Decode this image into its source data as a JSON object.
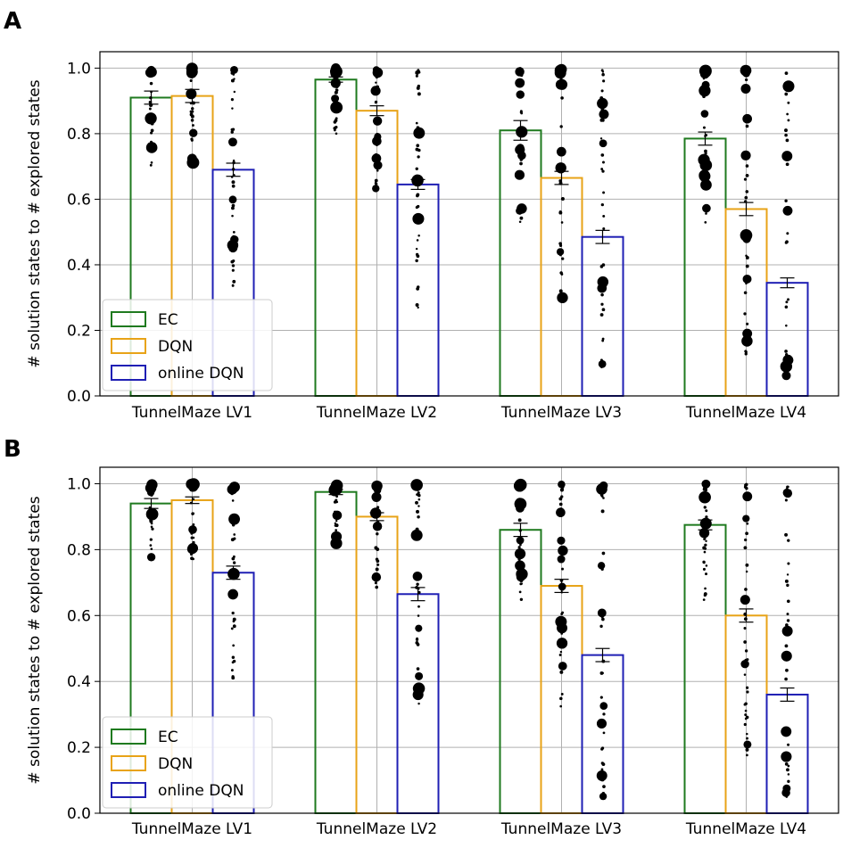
{
  "chart_data": [
    {
      "type": "bar",
      "panel_label": "A",
      "ylabel": "# solution states to # explored states",
      "xlabel": "",
      "ylim": [
        0,
        1.05
      ],
      "yticks": [
        "0.0",
        "0.2",
        "0.4",
        "0.6",
        "0.8",
        "1.0"
      ],
      "grid": true,
      "legend_position": "lower-left",
      "categories": [
        "TunnelMaze  LV1",
        "TunnelMaze  LV2",
        "TunnelMaze  LV3",
        "TunnelMaze  LV4"
      ],
      "series": [
        {
          "name": "EC",
          "color": "#1f7a1f",
          "values": [
            0.91,
            0.965,
            0.81,
            0.785
          ],
          "errors": [
            0.02,
            0.008,
            0.03,
            0.02
          ]
        },
        {
          "name": "DQN",
          "color": "#e8a317",
          "values": [
            0.915,
            0.87,
            0.665,
            0.57
          ],
          "errors": [
            0.02,
            0.015,
            0.02,
            0.02
          ]
        },
        {
          "name": "online DQN",
          "color": "#1f1fb4",
          "values": [
            0.69,
            0.645,
            0.485,
            0.345
          ],
          "errors": [
            0.02,
            0.015,
            0.02,
            0.015
          ]
        }
      ]
    },
    {
      "type": "bar",
      "panel_label": "B",
      "ylabel": "# solution states to # explored states",
      "xlabel": "",
      "ylim": [
        0,
        1.05
      ],
      "yticks": [
        "0.0",
        "0.2",
        "0.4",
        "0.6",
        "0.8",
        "1.0"
      ],
      "grid": true,
      "legend_position": "lower-left",
      "categories": [
        "TunnelMaze  LV1",
        "TunnelMaze  LV2",
        "TunnelMaze  LV3",
        "TunnelMaze  LV4"
      ],
      "series": [
        {
          "name": "EC",
          "color": "#1f7a1f",
          "values": [
            0.94,
            0.975,
            0.86,
            0.875
          ],
          "errors": [
            0.015,
            0.008,
            0.02,
            0.015
          ]
        },
        {
          "name": "DQN",
          "color": "#e8a317",
          "values": [
            0.95,
            0.9,
            0.69,
            0.6
          ],
          "errors": [
            0.01,
            0.012,
            0.02,
            0.02
          ]
        },
        {
          "name": "online DQN",
          "color": "#1f1fb4",
          "values": [
            0.73,
            0.665,
            0.48,
            0.36
          ],
          "errors": [
            0.02,
            0.02,
            0.02,
            0.02
          ]
        }
      ]
    }
  ]
}
